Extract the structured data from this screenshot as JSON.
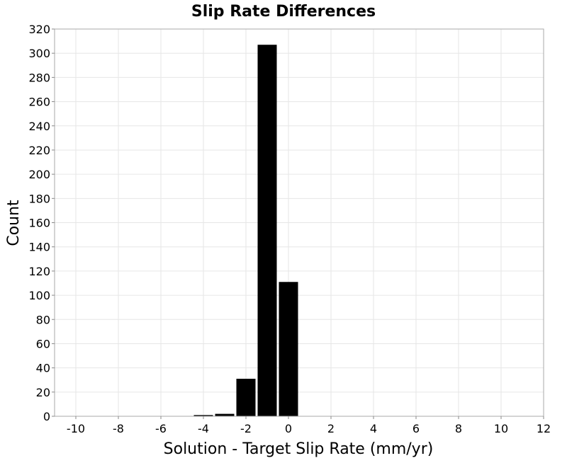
{
  "chart_data": {
    "type": "bar",
    "title": "Slip Rate Differences",
    "xlabel": "Solution - Target Slip Rate (mm/yr)",
    "ylabel": "Count",
    "xlim": [
      -11,
      12
    ],
    "ylim": [
      0,
      320
    ],
    "xticks": [
      -10,
      -8,
      -6,
      -4,
      -2,
      0,
      2,
      4,
      6,
      8,
      10,
      12
    ],
    "yticks": [
      0,
      20,
      40,
      60,
      80,
      100,
      120,
      140,
      160,
      180,
      200,
      220,
      240,
      260,
      280,
      300,
      320
    ],
    "bin_width": 1,
    "bins": [
      {
        "center": -4,
        "value": 1
      },
      {
        "center": -3,
        "value": 2
      },
      {
        "center": -2,
        "value": 31
      },
      {
        "center": -1,
        "value": 307
      },
      {
        "center": 0,
        "value": 111
      }
    ],
    "grid": true,
    "bar_color": "#000000",
    "grid_color": "#e6e6e6"
  }
}
